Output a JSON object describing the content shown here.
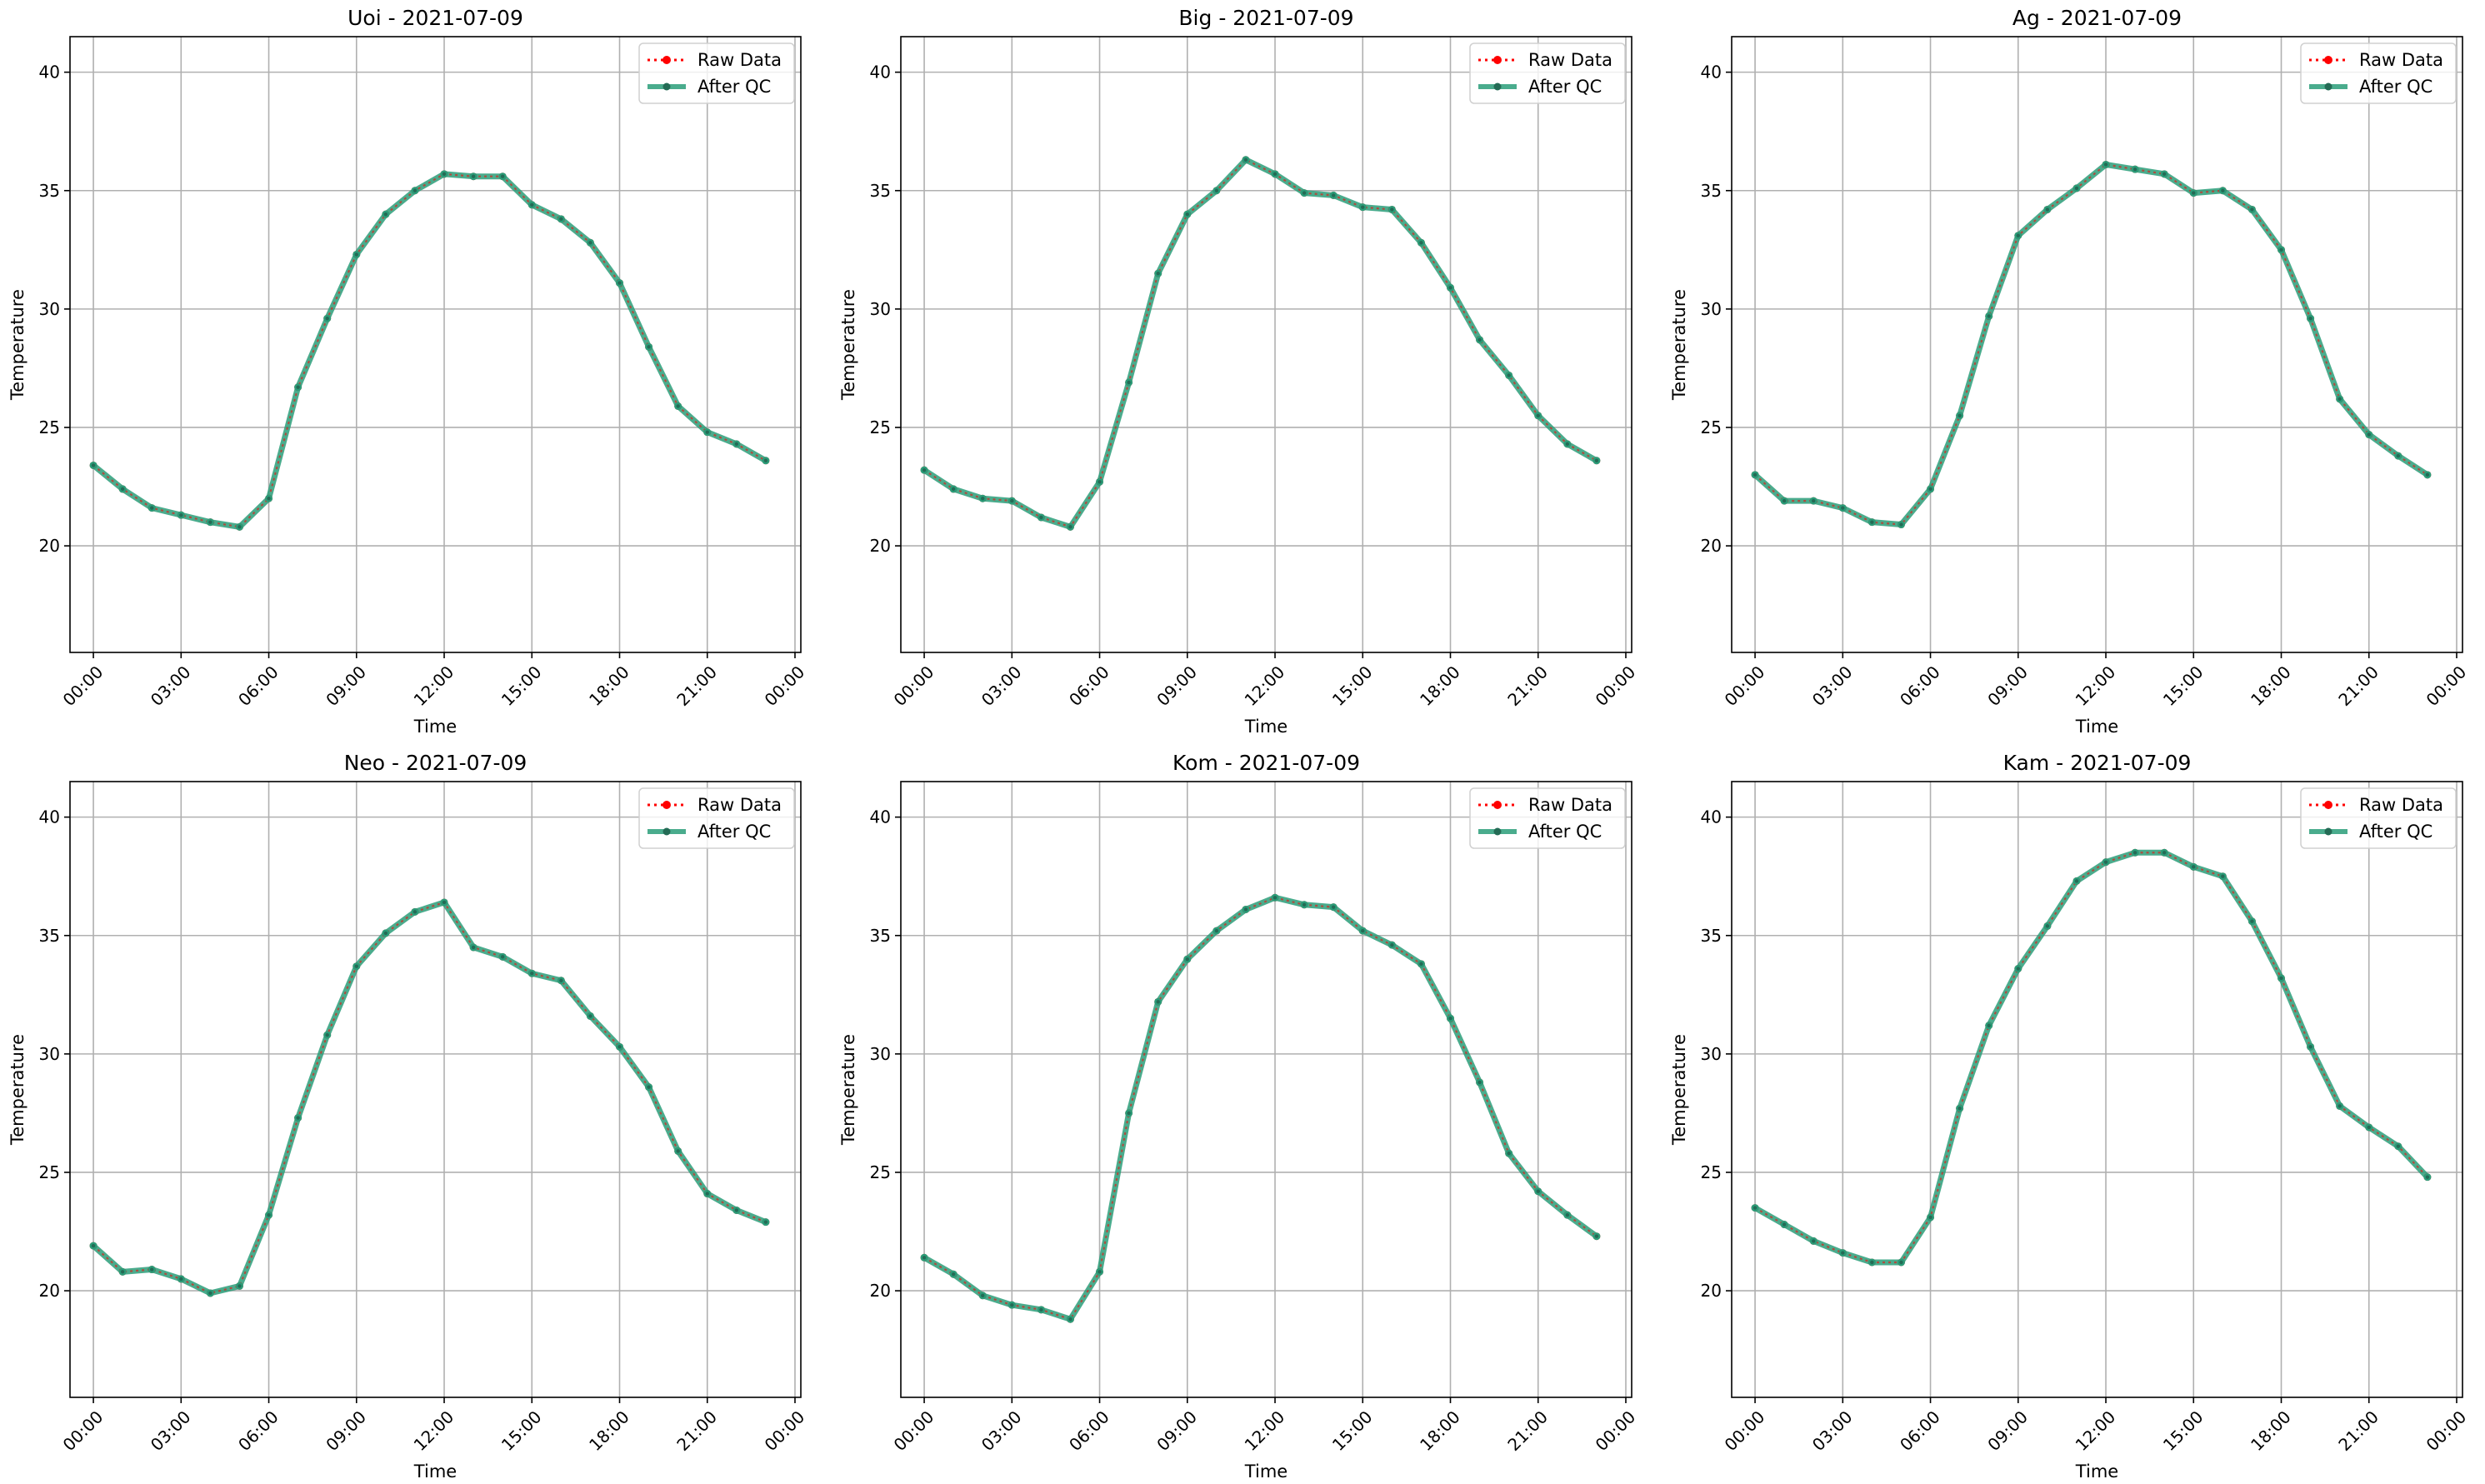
{
  "figure": {
    "background": "#ffffff"
  },
  "colors": {
    "raw": "#ff0000",
    "qc": "#2a9d79",
    "grid": "#b0b0b0",
    "axis": "#000000"
  },
  "legend": {
    "location": "upper right",
    "entries": [
      "Raw Data",
      "After QC"
    ]
  },
  "chart_data": [
    {
      "type": "line",
      "title": "Uoi - 2021-07-09",
      "xlabel": "Time",
      "ylabel": "Temperature",
      "ylim": [
        15.5,
        41.5
      ],
      "yticks": [
        20,
        25,
        30,
        35,
        40
      ],
      "xlim": [
        -0.8,
        24.2
      ],
      "xticks": [
        "00:00",
        "03:00",
        "06:00",
        "09:00",
        "12:00",
        "15:00",
        "18:00",
        "21:00",
        "00:00"
      ],
      "x_hours": [
        0,
        1,
        2,
        3,
        4,
        5,
        6,
        7,
        8,
        9,
        10,
        11,
        12,
        13,
        14,
        15,
        16,
        17,
        18,
        19,
        20,
        21,
        22,
        23
      ],
      "series": [
        {
          "name": "Raw Data",
          "values": [
            23.4,
            22.4,
            21.6,
            21.3,
            21.0,
            20.8,
            22.0,
            26.7,
            29.6,
            32.3,
            34.0,
            35.0,
            35.7,
            35.6,
            35.6,
            34.4,
            33.8,
            32.8,
            31.1,
            28.4,
            25.9,
            24.8,
            24.3,
            23.6
          ]
        },
        {
          "name": "After QC",
          "values": [
            23.4,
            22.4,
            21.6,
            21.3,
            21.0,
            20.8,
            22.0,
            26.7,
            29.6,
            32.3,
            34.0,
            35.0,
            35.7,
            35.6,
            35.6,
            34.4,
            33.8,
            32.8,
            31.1,
            28.4,
            25.9,
            24.8,
            24.3,
            23.6
          ]
        }
      ]
    },
    {
      "type": "line",
      "title": "Big - 2021-07-09",
      "xlabel": "Time",
      "ylabel": "Temperature",
      "ylim": [
        15.5,
        41.5
      ],
      "yticks": [
        20,
        25,
        30,
        35,
        40
      ],
      "xlim": [
        -0.8,
        24.2
      ],
      "xticks": [
        "00:00",
        "03:00",
        "06:00",
        "09:00",
        "12:00",
        "15:00",
        "18:00",
        "21:00",
        "00:00"
      ],
      "x_hours": [
        0,
        1,
        2,
        3,
        4,
        5,
        6,
        7,
        8,
        9,
        10,
        11,
        12,
        13,
        14,
        15,
        16,
        17,
        18,
        19,
        20,
        21,
        22,
        23
      ],
      "series": [
        {
          "name": "Raw Data",
          "values": [
            23.2,
            22.4,
            22.0,
            21.9,
            21.2,
            20.8,
            22.7,
            26.9,
            31.5,
            34.0,
            35.0,
            36.3,
            35.7,
            34.9,
            34.8,
            34.3,
            34.2,
            32.8,
            30.9,
            28.7,
            27.2,
            25.5,
            24.3,
            23.6
          ]
        },
        {
          "name": "After QC",
          "values": [
            23.2,
            22.4,
            22.0,
            21.9,
            21.2,
            20.8,
            22.7,
            26.9,
            31.5,
            34.0,
            35.0,
            36.3,
            35.7,
            34.9,
            34.8,
            34.3,
            34.2,
            32.8,
            30.9,
            28.7,
            27.2,
            25.5,
            24.3,
            23.6
          ]
        }
      ]
    },
    {
      "type": "line",
      "title": "Ag - 2021-07-09",
      "xlabel": "Time",
      "ylabel": "Temperature",
      "ylim": [
        15.5,
        41.5
      ],
      "yticks": [
        20,
        25,
        30,
        35,
        40
      ],
      "xlim": [
        -0.8,
        24.2
      ],
      "xticks": [
        "00:00",
        "03:00",
        "06:00",
        "09:00",
        "12:00",
        "15:00",
        "18:00",
        "21:00",
        "00:00"
      ],
      "x_hours": [
        0,
        1,
        2,
        3,
        4,
        5,
        6,
        7,
        8,
        9,
        10,
        11,
        12,
        13,
        14,
        15,
        16,
        17,
        18,
        19,
        20,
        21,
        22,
        23
      ],
      "series": [
        {
          "name": "Raw Data",
          "values": [
            23.0,
            21.9,
            21.9,
            21.6,
            21.0,
            20.9,
            22.4,
            25.5,
            29.7,
            33.1,
            34.2,
            35.1,
            36.1,
            35.9,
            35.7,
            34.9,
            35.0,
            34.2,
            32.5,
            29.6,
            26.2,
            24.7,
            23.8,
            23.0
          ]
        },
        {
          "name": "After QC",
          "values": [
            23.0,
            21.9,
            21.9,
            21.6,
            21.0,
            20.9,
            22.4,
            25.5,
            29.7,
            33.1,
            34.2,
            35.1,
            36.1,
            35.9,
            35.7,
            34.9,
            35.0,
            34.2,
            32.5,
            29.6,
            26.2,
            24.7,
            23.8,
            23.0
          ]
        }
      ]
    },
    {
      "type": "line",
      "title": "Neo - 2021-07-09",
      "xlabel": "Time",
      "ylabel": "Temperature",
      "ylim": [
        15.5,
        41.5
      ],
      "yticks": [
        20,
        25,
        30,
        35,
        40
      ],
      "xlim": [
        -0.8,
        24.2
      ],
      "xticks": [
        "00:00",
        "03:00",
        "06:00",
        "09:00",
        "12:00",
        "15:00",
        "18:00",
        "21:00",
        "00:00"
      ],
      "x_hours": [
        0,
        1,
        2,
        3,
        4,
        5,
        6,
        7,
        8,
        9,
        10,
        11,
        12,
        13,
        14,
        15,
        16,
        17,
        18,
        19,
        20,
        21,
        22,
        23
      ],
      "series": [
        {
          "name": "Raw Data",
          "values": [
            21.9,
            20.8,
            20.9,
            20.5,
            19.9,
            20.2,
            23.2,
            27.3,
            30.8,
            33.7,
            35.1,
            36.0,
            36.4,
            34.5,
            34.1,
            33.4,
            33.1,
            31.6,
            30.3,
            28.6,
            25.9,
            24.1,
            23.4,
            22.9
          ]
        },
        {
          "name": "After QC",
          "values": [
            21.9,
            20.8,
            20.9,
            20.5,
            19.9,
            20.2,
            23.2,
            27.3,
            30.8,
            33.7,
            35.1,
            36.0,
            36.4,
            34.5,
            34.1,
            33.4,
            33.1,
            31.6,
            30.3,
            28.6,
            25.9,
            24.1,
            23.4,
            22.9
          ]
        }
      ]
    },
    {
      "type": "line",
      "title": "Kom - 2021-07-09",
      "xlabel": "Time",
      "ylabel": "Temperature",
      "ylim": [
        15.5,
        41.5
      ],
      "yticks": [
        20,
        25,
        30,
        35,
        40
      ],
      "xlim": [
        -0.8,
        24.2
      ],
      "xticks": [
        "00:00",
        "03:00",
        "06:00",
        "09:00",
        "12:00",
        "15:00",
        "18:00",
        "21:00",
        "00:00"
      ],
      "x_hours": [
        0,
        1,
        2,
        3,
        4,
        5,
        6,
        7,
        8,
        9,
        10,
        11,
        12,
        13,
        14,
        15,
        16,
        17,
        18,
        19,
        20,
        21,
        22,
        23
      ],
      "series": [
        {
          "name": "Raw Data",
          "values": [
            21.4,
            20.7,
            19.8,
            19.4,
            19.2,
            18.8,
            20.8,
            27.5,
            32.2,
            34.0,
            35.2,
            36.1,
            36.6,
            36.3,
            36.2,
            35.2,
            34.6,
            33.8,
            31.5,
            28.8,
            25.8,
            24.2,
            23.2,
            22.3
          ]
        },
        {
          "name": "After QC",
          "values": [
            21.4,
            20.7,
            19.8,
            19.4,
            19.2,
            18.8,
            20.8,
            27.5,
            32.2,
            34.0,
            35.2,
            36.1,
            36.6,
            36.3,
            36.2,
            35.2,
            34.6,
            33.8,
            31.5,
            28.8,
            25.8,
            24.2,
            23.2,
            22.3
          ]
        }
      ]
    },
    {
      "type": "line",
      "title": "Kam - 2021-07-09",
      "xlabel": "Time",
      "ylabel": "Temperature",
      "ylim": [
        15.5,
        41.5
      ],
      "yticks": [
        20,
        25,
        30,
        35,
        40
      ],
      "xlim": [
        -0.8,
        24.2
      ],
      "xticks": [
        "00:00",
        "03:00",
        "06:00",
        "09:00",
        "12:00",
        "15:00",
        "18:00",
        "21:00",
        "00:00"
      ],
      "x_hours": [
        0,
        1,
        2,
        3,
        4,
        5,
        6,
        7,
        8,
        9,
        10,
        11,
        12,
        13,
        14,
        15,
        16,
        17,
        18,
        19,
        20,
        21,
        22,
        23
      ],
      "series": [
        {
          "name": "Raw Data",
          "values": [
            23.5,
            22.8,
            22.1,
            21.6,
            21.2,
            21.2,
            23.1,
            27.7,
            31.2,
            33.6,
            35.4,
            37.3,
            38.1,
            38.5,
            38.5,
            37.9,
            37.5,
            35.6,
            33.2,
            30.3,
            27.8,
            26.9,
            26.1,
            24.8
          ]
        },
        {
          "name": "After QC",
          "values": [
            23.5,
            22.8,
            22.1,
            21.6,
            21.2,
            21.2,
            23.1,
            27.7,
            31.2,
            33.6,
            35.4,
            37.3,
            38.1,
            38.5,
            38.5,
            37.9,
            37.5,
            35.6,
            33.2,
            30.3,
            27.8,
            26.9,
            26.1,
            24.8
          ]
        }
      ]
    }
  ]
}
